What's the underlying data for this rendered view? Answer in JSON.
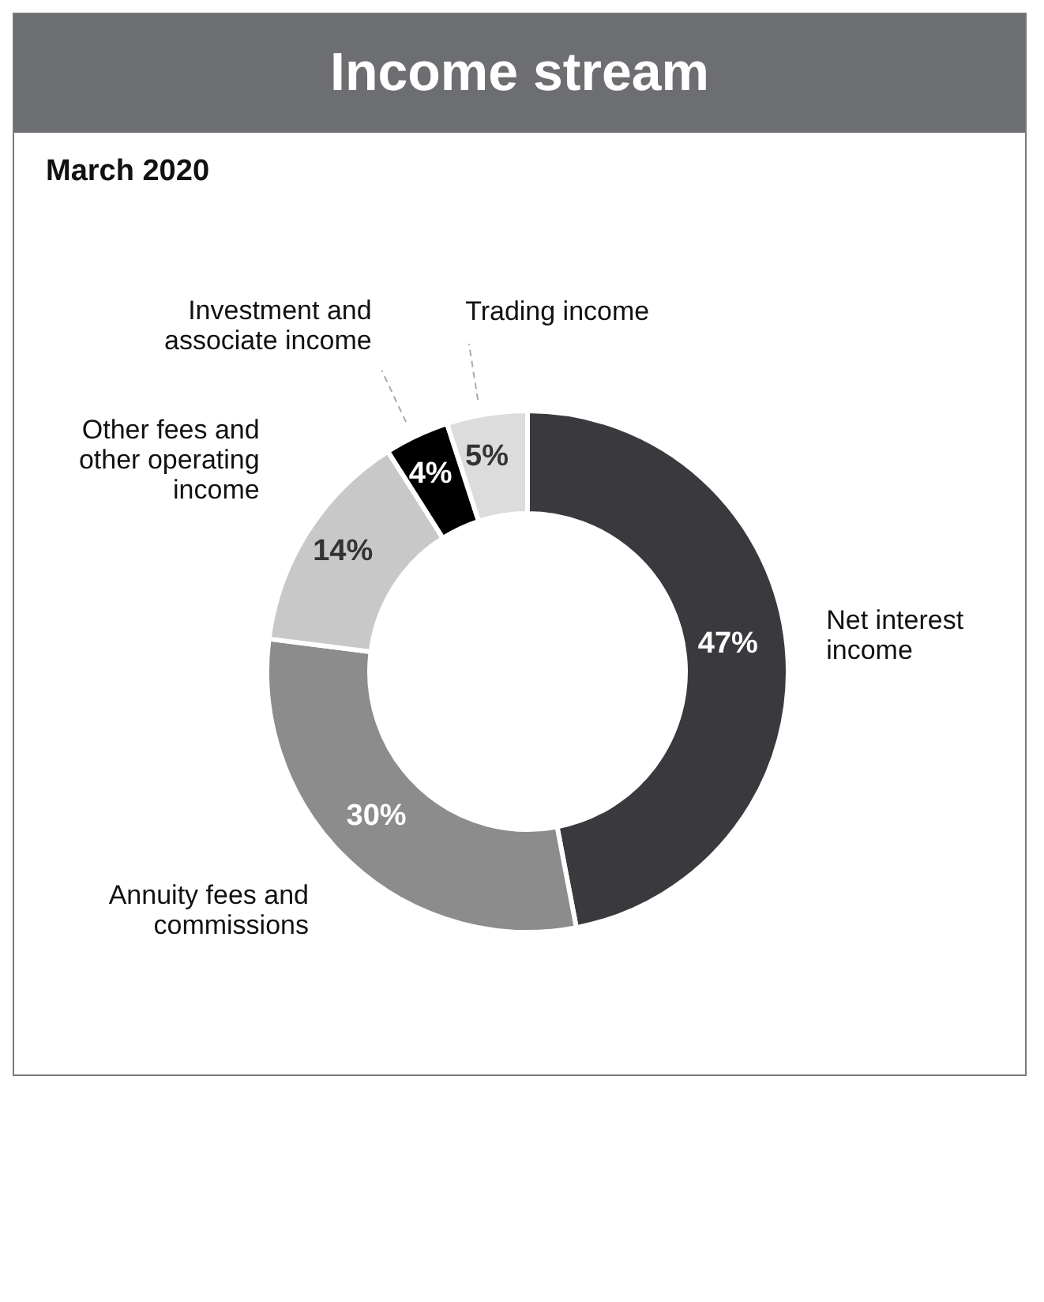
{
  "chart_data": {
    "type": "donut",
    "title": "Income stream",
    "subtitle": "March 2020",
    "categories": [
      "Net interest income",
      "Annuity fees and commissions",
      "Other fees and other operating income",
      "Investment and associate income",
      "Trading income"
    ],
    "values": [
      47,
      30,
      14,
      4,
      5
    ],
    "value_labels": [
      "47%",
      "30%",
      "14%",
      "4%",
      "5%"
    ],
    "colors": [
      "#3a3a3e",
      "#8c8c8c",
      "#c8c8c8",
      "#000000",
      "#dcdcdc"
    ],
    "legend": false
  }
}
